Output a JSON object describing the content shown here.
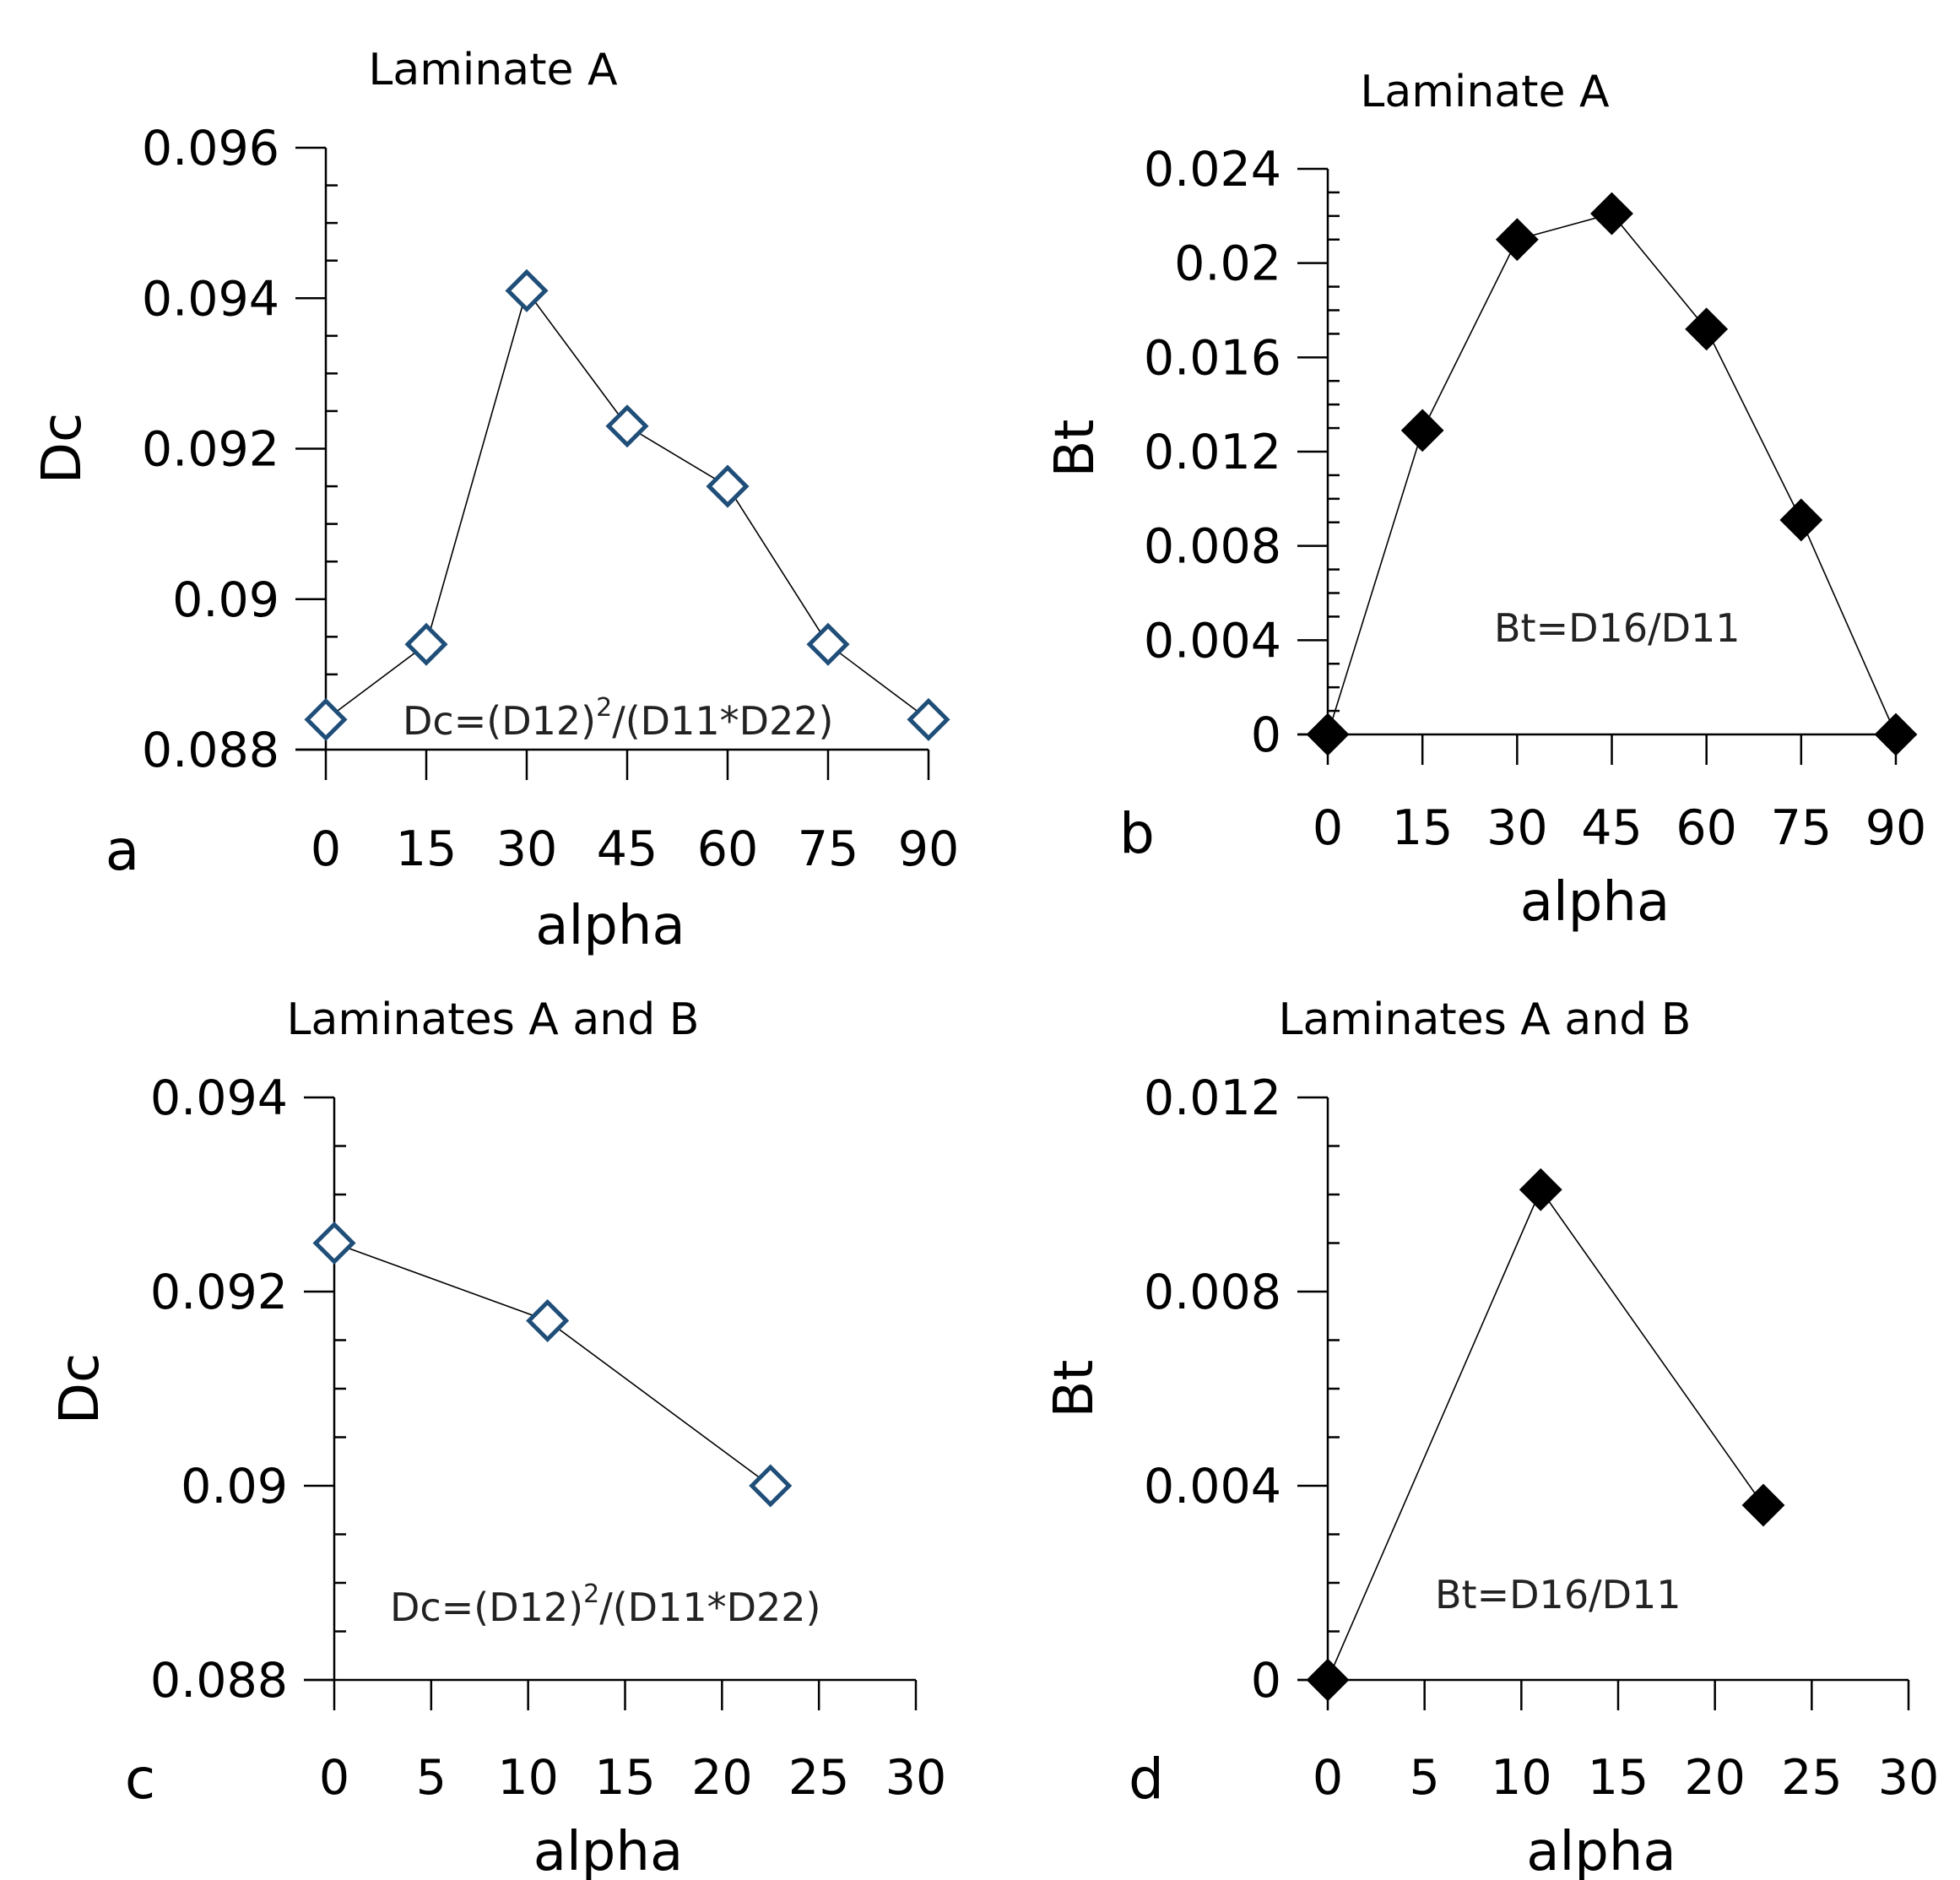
{
  "colors": {
    "open_marker": "#1f4e79",
    "filled_marker": "#000000",
    "line": "#000000"
  },
  "chart_data": [
    {
      "panel": "a",
      "type": "line",
      "title": "Laminate A",
      "xlabel": "alpha",
      "ylabel": "Dc",
      "annotation": {
        "main": "Dc=(D12)",
        "sup": "2",
        "tail": "/(D11*D22)"
      },
      "marker": "open-diamond",
      "x_ticks": [
        "0",
        "15",
        "30",
        "45",
        "60",
        "75",
        "90"
      ],
      "y_ticks": [
        "0.088",
        "0.09",
        "0.092",
        "0.094",
        "0.096"
      ],
      "xlim": [
        0,
        90
      ],
      "ylim": [
        0.088,
        0.096
      ],
      "x": [
        0,
        15,
        30,
        45,
        60,
        75,
        90
      ],
      "y": [
        0.0884,
        0.0894,
        0.0941,
        0.0923,
        0.0915,
        0.0894,
        0.0884
      ]
    },
    {
      "panel": "b",
      "type": "line",
      "title": "Laminate A",
      "xlabel": "alpha",
      "ylabel": "Bt",
      "annotation": {
        "main": "Bt=D16/D11",
        "sup": "",
        "tail": ""
      },
      "marker": "filled-diamond",
      "x_ticks": [
        "0",
        "15",
        "30",
        "45",
        "60",
        "75",
        "90"
      ],
      "y_ticks": [
        "0",
        "0.004",
        "0.008",
        "0.012",
        "0.016",
        "0.02",
        "0.024"
      ],
      "xlim": [
        0,
        90
      ],
      "ylim": [
        0,
        0.024
      ],
      "x": [
        0,
        15,
        30,
        45,
        60,
        75,
        90
      ],
      "y": [
        0,
        0.0129,
        0.021,
        0.0221,
        0.0172,
        0.0091,
        0
      ]
    },
    {
      "panel": "c",
      "type": "line",
      "title": "Laminates A and B",
      "xlabel": "alpha",
      "ylabel": "Dc",
      "annotation": {
        "main": "Dc=(D12)",
        "sup": "2",
        "tail": "/(D11*D22)"
      },
      "marker": "open-diamond",
      "x_ticks": [
        "0",
        "5",
        "10",
        "15",
        "20",
        "25",
        "30"
      ],
      "y_ticks": [
        "0.088",
        "0.09",
        "0.092",
        "0.094"
      ],
      "xlim": [
        0,
        30
      ],
      "ylim": [
        0.088,
        0.094
      ],
      "x": [
        0,
        11,
        22.5
      ],
      "y": [
        0.0925,
        0.0917,
        0.09
      ]
    },
    {
      "panel": "d",
      "type": "line",
      "title": "Laminates A and B",
      "xlabel": "alpha",
      "ylabel": "Bt",
      "annotation": {
        "main": "Bt=D16/D11",
        "sup": "",
        "tail": ""
      },
      "marker": "filled-diamond",
      "x_ticks": [
        "0",
        "5",
        "10",
        "15",
        "20",
        "25",
        "30"
      ],
      "y_ticks": [
        "0",
        "0.004",
        "0.008",
        "0.012"
      ],
      "xlim": [
        0,
        30
      ],
      "ylim": [
        0,
        0.012
      ],
      "x": [
        0,
        11,
        22.5
      ],
      "y": [
        0,
        0.0101,
        0.0036
      ]
    }
  ]
}
